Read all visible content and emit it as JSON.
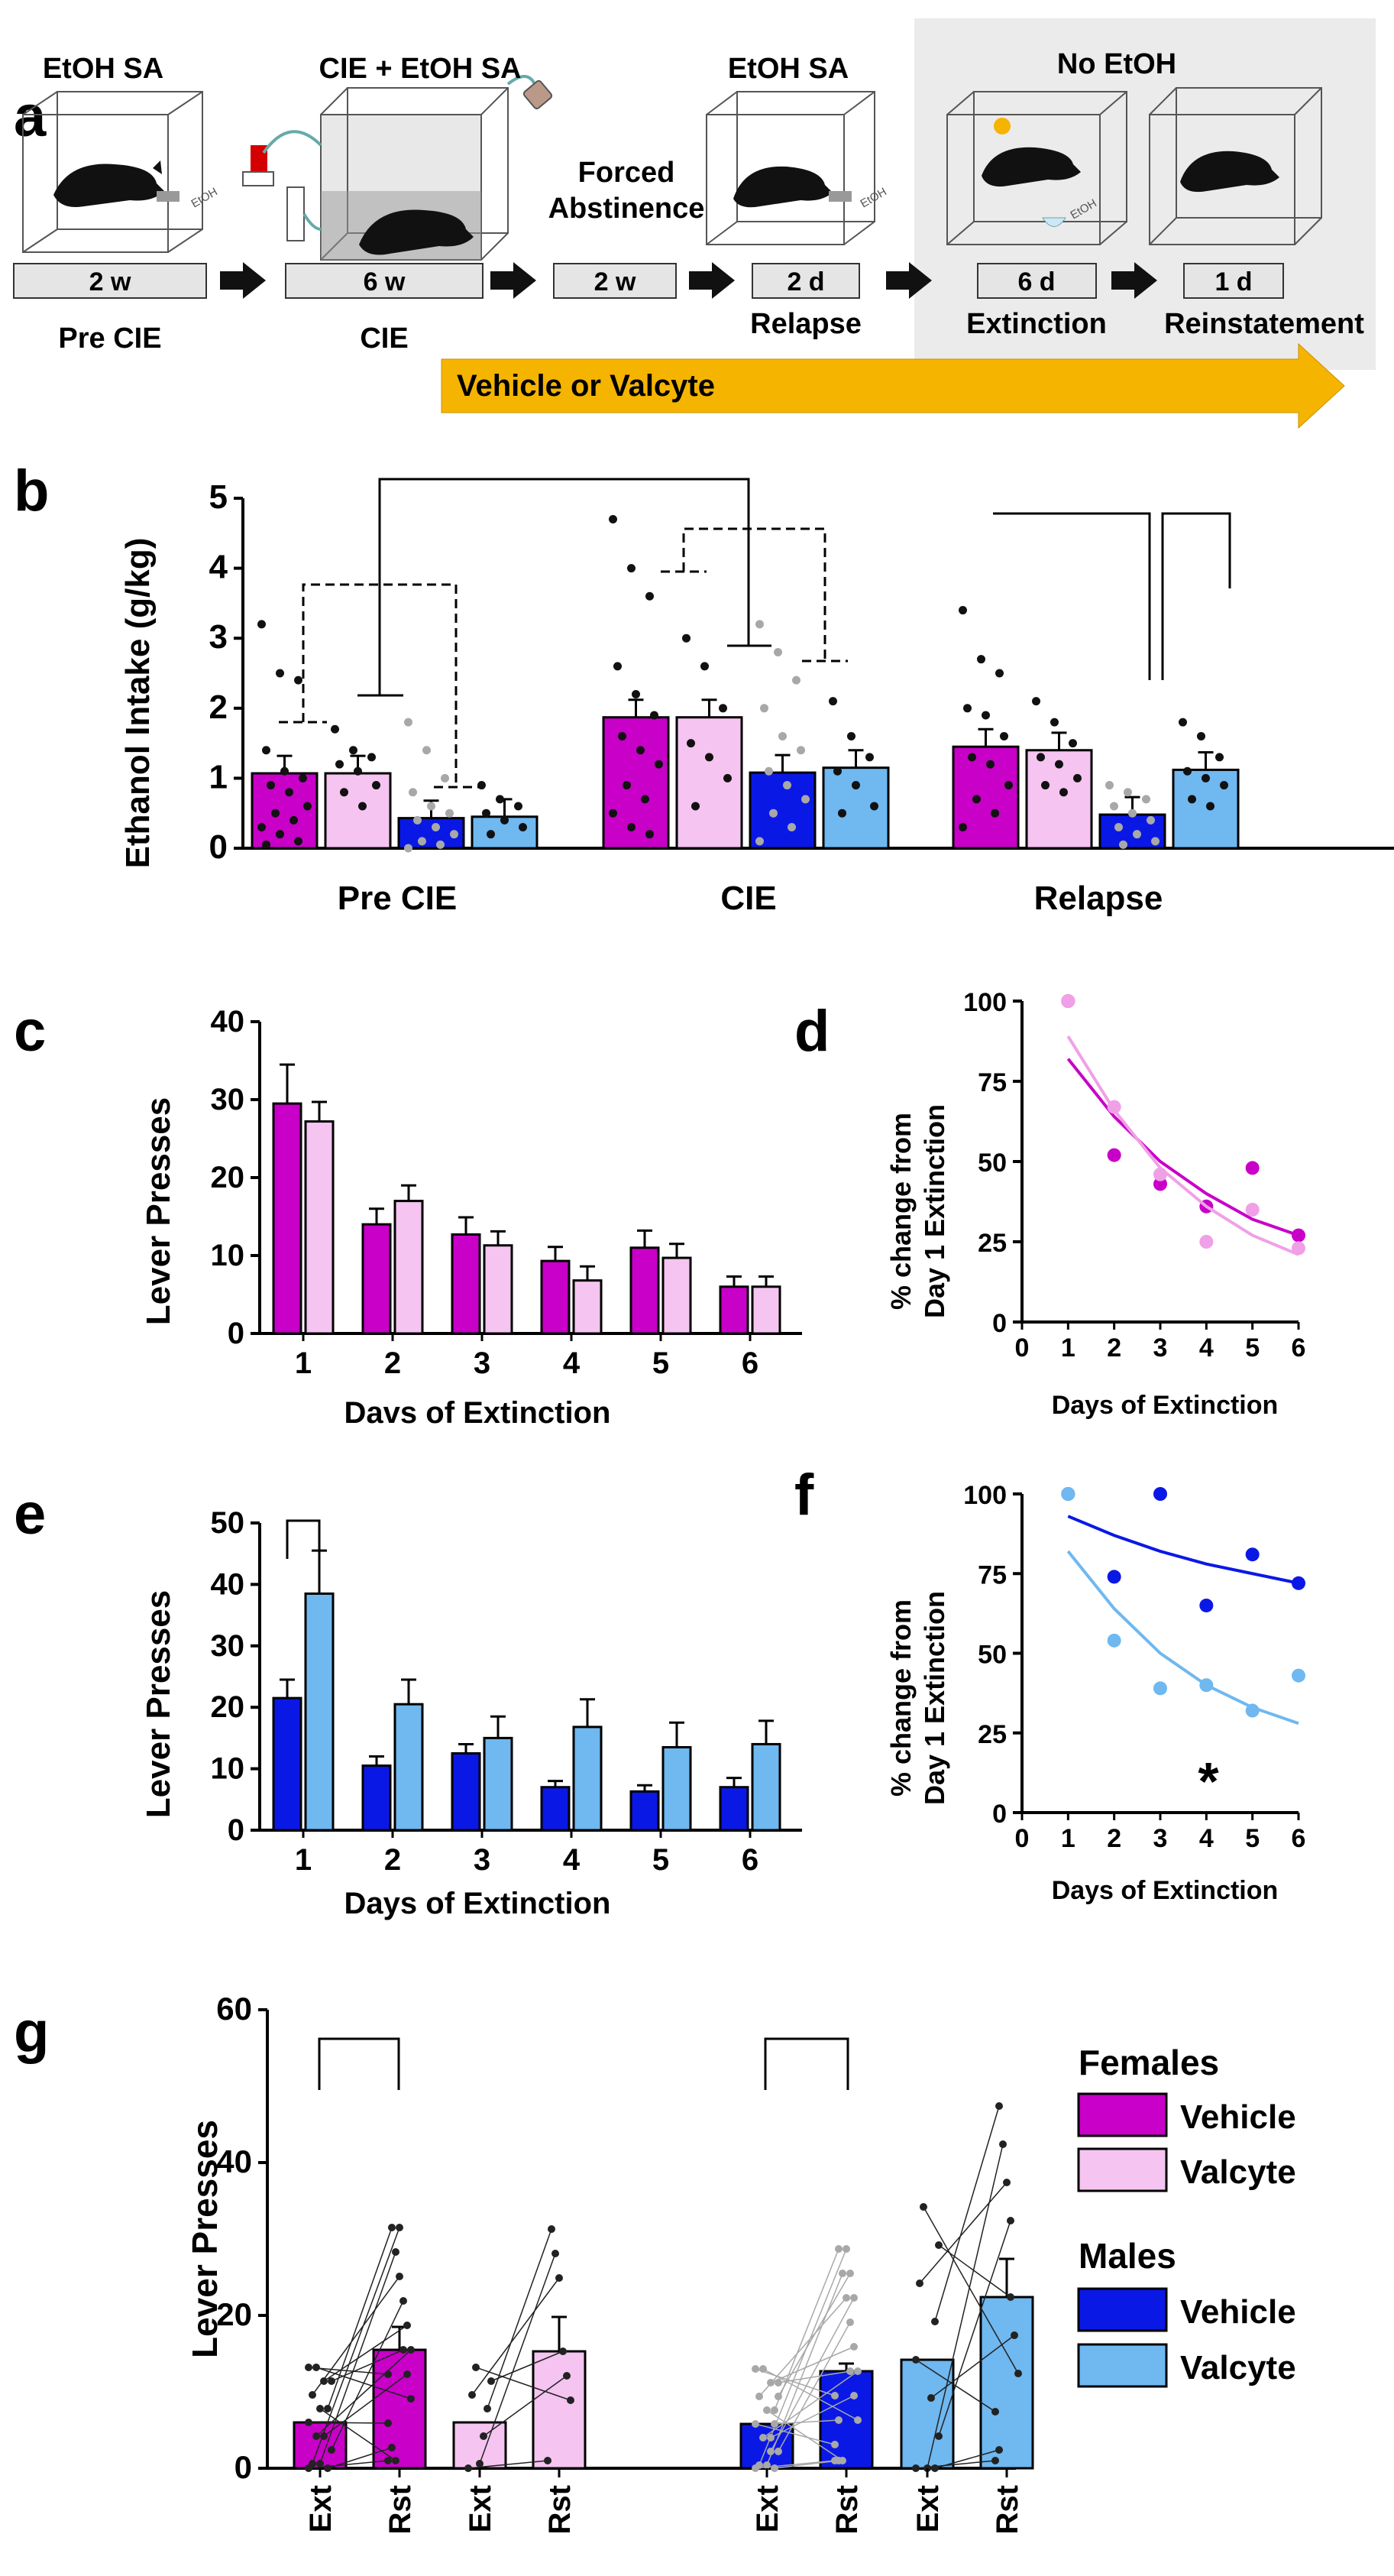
{
  "colors": {
    "female_vehicle": "#c800c8",
    "female_valcyte": "#f5c4f0",
    "male_vehicle": "#0a18e6",
    "male_valcyte": "#6fb8f0",
    "arrow_orange": "#f5b400",
    "panel_gray": "#ebebeb"
  },
  "panel_a": {
    "letter": "a",
    "stage1": {
      "title": "EtOH SA",
      "duration": "2 w",
      "label": "Pre CIE"
    },
    "stage2": {
      "title": "CIE + EtOH SA",
      "duration": "6 w",
      "label": "CIE"
    },
    "stage3": {
      "title_line1": "Forced",
      "title_line2": "Abstinence",
      "duration": "2 w"
    },
    "stage4": {
      "title": "EtOH SA",
      "duration": "2 d",
      "label": "Relapse"
    },
    "no_etoh_title": "No EtOH",
    "stage5": {
      "duration": "6 d",
      "label": "Extinction"
    },
    "stage6": {
      "duration": "1 d",
      "label": "Reinstatement"
    },
    "treatment_arrow": "Vehicle or Valcyte",
    "bottle_label": "EtOH"
  },
  "chart_data": [
    {
      "panel": "b",
      "type": "bar",
      "categories": [
        "Pre CIE",
        "CIE",
        "Relapse"
      ],
      "ylabel": "Ethanol Intake (g/kg)",
      "ylim": [
        0,
        5
      ],
      "yticks": [
        "0",
        "1",
        "2",
        "3",
        "4",
        "5"
      ],
      "series": [
        {
          "name": "Females Vehicle",
          "values": [
            1.07,
            1.87,
            1.45
          ],
          "points": [
            [
              3.2,
              2.5,
              2.4,
              1.4,
              1.1,
              1.0,
              0.9,
              0.8,
              0.6,
              0.5,
              0.4,
              0.3,
              0.2,
              0.1,
              0.05
            ],
            [
              4.7,
              4.0,
              3.6,
              2.6,
              2.2,
              1.9,
              1.6,
              1.4,
              1.2,
              0.9,
              0.7,
              0.5,
              0.3,
              0.2
            ],
            [
              3.4,
              2.7,
              2.5,
              2.0,
              1.9,
              1.6,
              1.3,
              1.2,
              0.9,
              0.7,
              0.5,
              0.3
            ]
          ]
        },
        {
          "name": "Females Valcyte",
          "values": [
            1.07,
            1.87,
            1.4
          ],
          "points": [
            [
              1.7,
              1.4,
              1.3,
              1.2,
              1.1,
              0.9,
              0.8,
              0.6
            ],
            [
              3.0,
              2.6,
              2.0,
              1.5,
              1.3,
              1.0,
              0.6
            ],
            [
              2.1,
              1.8,
              1.5,
              1.3,
              1.2,
              1.0,
              0.9,
              0.8
            ]
          ]
        },
        {
          "name": "Males Vehicle",
          "values": [
            0.43,
            1.08,
            0.48
          ],
          "points": [
            [
              1.8,
              1.4,
              1.0,
              0.8,
              0.6,
              0.5,
              0.4,
              0.3,
              0.2,
              0.1,
              0.05,
              0.0
            ],
            [
              3.2,
              2.8,
              2.4,
              2.0,
              1.6,
              1.4,
              1.1,
              0.9,
              0.7,
              0.5,
              0.3,
              0.1
            ],
            [
              0.9,
              0.8,
              0.7,
              0.6,
              0.5,
              0.4,
              0.3,
              0.2,
              0.1,
              0.05
            ]
          ]
        },
        {
          "name": "Males Valcyte",
          "values": [
            0.45,
            1.15,
            1.12
          ],
          "points": [
            [
              0.9,
              0.7,
              0.6,
              0.5,
              0.4,
              0.3,
              0.2
            ],
            [
              2.1,
              1.6,
              1.3,
              1.1,
              0.9,
              0.6,
              0.5
            ],
            [
              1.8,
              1.6,
              1.3,
              1.1,
              1.0,
              0.9,
              0.7,
              0.6
            ]
          ]
        }
      ]
    },
    {
      "panel": "c",
      "type": "bar",
      "categories": [
        "1",
        "2",
        "3",
        "4",
        "5",
        "6"
      ],
      "xlabel": "Davs of Extinction",
      "ylabel": "Lever Presses",
      "ylim": [
        0,
        40
      ],
      "yticks": [
        "0",
        "10",
        "20",
        "30",
        "40"
      ],
      "series": [
        {
          "name": "Females Vehicle",
          "values": [
            29.5,
            14,
            12.7,
            9.3,
            11,
            6
          ],
          "errors": [
            5,
            2,
            2.2,
            1.8,
            2.2,
            1.3
          ]
        },
        {
          "name": "Females Valcyte",
          "values": [
            27.2,
            17,
            11.3,
            6.8,
            9.7,
            6
          ],
          "errors": [
            2.5,
            2,
            1.8,
            1.8,
            1.8,
            1.3
          ]
        }
      ]
    },
    {
      "panel": "d",
      "type": "scatter",
      "xlabel": "Days of Extinction",
      "ylabel_line1": "% change from",
      "ylabel_line2": "Day 1 Extinction",
      "xlim": [
        0,
        6
      ],
      "ylim": [
        0,
        100
      ],
      "xticks": [
        "0",
        "1",
        "2",
        "3",
        "4",
        "5",
        "6"
      ],
      "yticks": [
        "0",
        "25",
        "50",
        "75",
        "100"
      ],
      "series": [
        {
          "name": "Females Vehicle",
          "x": [
            1,
            2,
            3,
            4,
            5,
            6
          ],
          "y": [
            100,
            52,
            43,
            36,
            48,
            27
          ],
          "fit_y": [
            82,
            64,
            50,
            40,
            32,
            27
          ]
        },
        {
          "name": "Females Valcyte",
          "x": [
            1,
            2,
            3,
            4,
            5,
            6
          ],
          "y": [
            100,
            67,
            46,
            25,
            35,
            23
          ],
          "fit_y": [
            89,
            66,
            48,
            36,
            27,
            21
          ]
        }
      ]
    },
    {
      "panel": "e",
      "type": "bar",
      "categories": [
        "1",
        "2",
        "3",
        "4",
        "5",
        "6"
      ],
      "xlabel": "Days of Extinction",
      "ylabel": "Lever Presses",
      "ylim": [
        0,
        50
      ],
      "yticks": [
        "0",
        "10",
        "20",
        "30",
        "40",
        "50"
      ],
      "series": [
        {
          "name": "Males Vehicle",
          "values": [
            21.5,
            10.5,
            12.5,
            7,
            6.3,
            7
          ],
          "errors": [
            3,
            1.5,
            1.5,
            1,
            1,
            1.5
          ]
        },
        {
          "name": "Males Valcyte",
          "values": [
            38.5,
            20.5,
            15,
            16.8,
            13.5,
            14
          ],
          "errors": [
            7,
            4,
            3.5,
            4.5,
            4,
            3.8
          ]
        }
      ]
    },
    {
      "panel": "f",
      "type": "scatter",
      "xlabel": "Days of Extinction",
      "ylabel_line1": "% change from",
      "ylabel_line2": "Day 1 Extinction",
      "xlim": [
        0,
        6
      ],
      "ylim": [
        0,
        100
      ],
      "xticks": [
        "0",
        "1",
        "2",
        "3",
        "4",
        "5",
        "6"
      ],
      "yticks": [
        "0",
        "25",
        "50",
        "75",
        "100"
      ],
      "annotation": "*",
      "series": [
        {
          "name": "Males Vehicle",
          "x": [
            1,
            2,
            3,
            4,
            5,
            6
          ],
          "y": [
            100,
            74,
            100,
            65,
            81,
            72
          ],
          "fit_y": [
            93,
            87,
            82,
            78,
            75,
            72
          ]
        },
        {
          "name": "Males Valcyte",
          "x": [
            1,
            2,
            3,
            4,
            5,
            6
          ],
          "y": [
            100,
            54,
            39,
            40,
            32,
            43
          ],
          "fit_y": [
            82,
            64,
            50,
            40,
            33,
            28
          ]
        }
      ]
    },
    {
      "panel": "g",
      "type": "bar",
      "ylabel": "Lever Presses",
      "ylim": [
        0,
        60
      ],
      "yticks": [
        "0",
        "20",
        "40",
        "60"
      ],
      "categories": [
        "Ext",
        "Rst",
        "Ext",
        "Rst",
        "Ext",
        "Rst",
        "Ext",
        "Rst"
      ],
      "groups": [
        {
          "name": "Females Vehicle",
          "ext": 6,
          "rst": 15.5,
          "rst_err": 3
        },
        {
          "name": "Females Valcyte",
          "ext": 6,
          "rst": 15.3,
          "rst_err": 4.5
        },
        {
          "name": "Males Vehicle",
          "ext": 5.8,
          "rst": 12.7,
          "rst_err": 1
        },
        {
          "name": "Males Valcyte",
          "ext": 14.2,
          "rst": 22.4,
          "rst_err": 5
        }
      ],
      "legend": {
        "females_title": "Females",
        "males_title": "Males",
        "vehicle": "Vehicle",
        "valcyte": "Valcyte"
      }
    }
  ]
}
